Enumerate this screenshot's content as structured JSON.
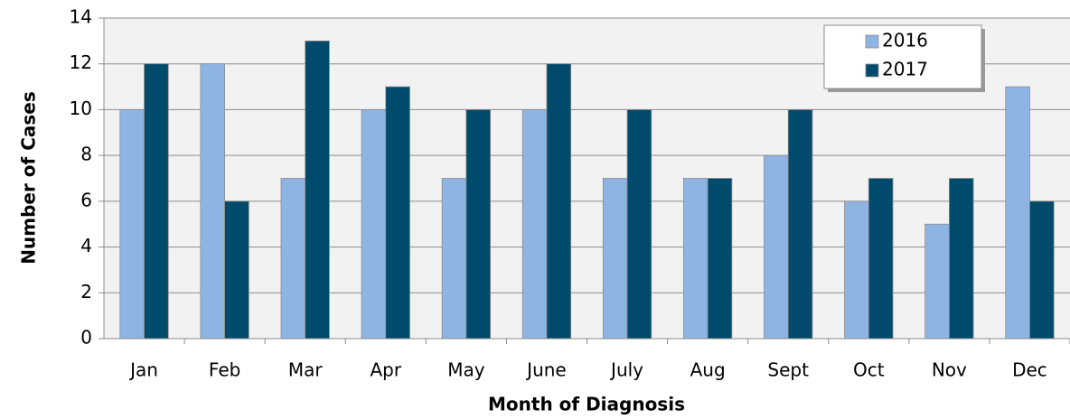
{
  "chart_data": {
    "type": "bar",
    "xlabel": "Month of Diagnosis",
    "ylabel": "Number of Cases",
    "categories": [
      "Jan",
      "Feb",
      "Mar",
      "Apr",
      "May",
      "June",
      "July",
      "Aug",
      "Sept",
      "Oct",
      "Nov",
      "Dec"
    ],
    "series": [
      {
        "name": "2016",
        "color": "#8eb4e3",
        "values": [
          10,
          12,
          7,
          10,
          7,
          10,
          7,
          7,
          8,
          6,
          5,
          11
        ]
      },
      {
        "name": "2017",
        "color": "#004a6b",
        "values": [
          12,
          6,
          13,
          11,
          10,
          12,
          10,
          7,
          10,
          7,
          7,
          6
        ]
      }
    ],
    "ylim": [
      0,
      14
    ],
    "yticks": [
      0,
      2,
      4,
      6,
      8,
      10,
      12,
      14
    ],
    "grid": true,
    "legend": "top-right"
  }
}
